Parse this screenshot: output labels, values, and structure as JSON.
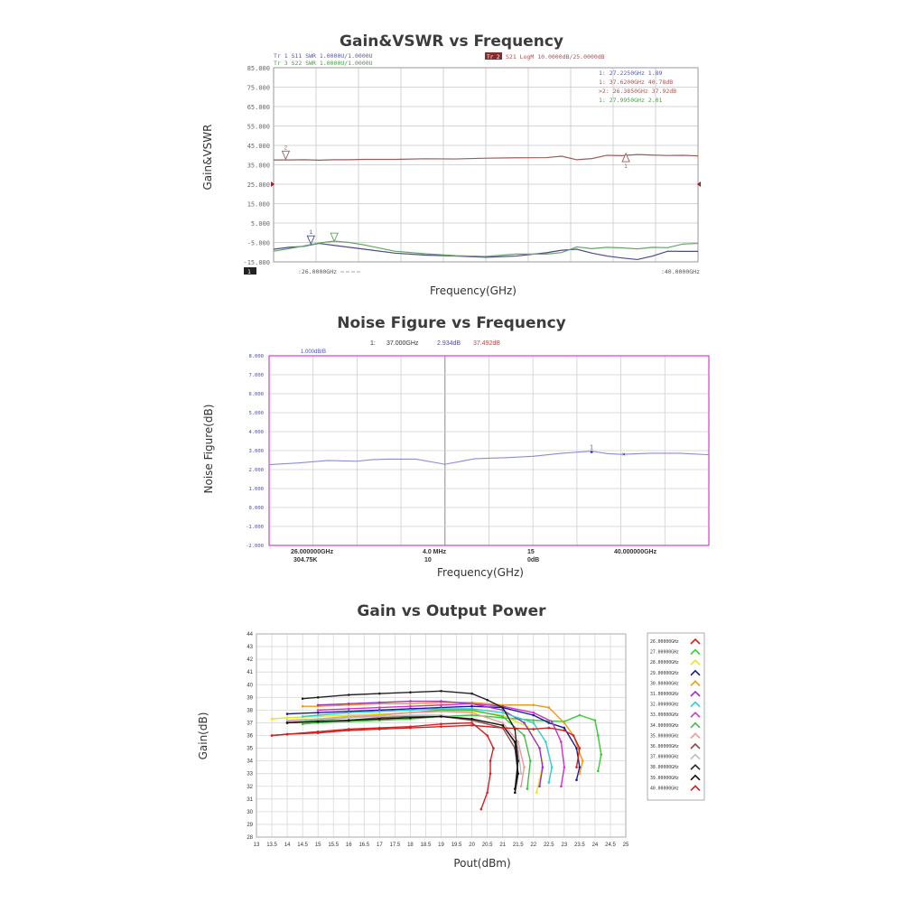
{
  "chart_data": [
    {
      "type": "line",
      "title": "Gain&VSWR vs Frequency",
      "xlabel": "Frequency(GHz)",
      "ylabel": "Gain&VSWR",
      "xlim": [
        26,
        40
      ],
      "ylim": [
        -15,
        85
      ],
      "yticks": [
        "85.000",
        "75.000",
        "65.000",
        "55.000",
        "45.000",
        "35.000",
        "25.000",
        "15.000",
        "5.000",
        "-5.000",
        "-15.000"
      ],
      "trace_header_left": [
        "Tr 1  S11 SWR 1.0000U/1.0000U",
        "Tr 3  S22 SWR 1.0000U/1.0000U"
      ],
      "trace_header_right": "S21 LogM 10.0000dB/25.0000dB",
      "trace_header_right_tag": "Tr 2",
      "marker_table": [
        {
          "text": "1:  27.2250GHz  1.89",
          "color": "#5a5aa8"
        },
        {
          "text": "1:  37.6200GHz  40.78dB",
          "color": "#a05858"
        },
        {
          "text": ">2:  26.3850GHz  37.92dB",
          "color": "#a05858"
        },
        {
          "text": "1:  27.9950GHz  2.01",
          "color": "#4c9a4c"
        }
      ],
      "start_label": ":26.0000GHz",
      "stop_label": ":40.0000GHz",
      "channel_label": "1",
      "series": [
        {
          "color": "#a05a5a",
          "x": [
            26,
            26.5,
            27,
            27.5,
            28,
            28.5,
            29,
            30,
            31,
            32,
            33,
            34,
            35,
            35.5,
            36,
            36.5,
            37,
            37.5,
            38,
            38.5,
            39,
            39.5,
            40
          ],
          "y": [
            37.5,
            37.5,
            37.6,
            37.4,
            37.6,
            37.6,
            37.8,
            37.8,
            38.1,
            38.0,
            38.4,
            38.6,
            38.7,
            39.4,
            37.6,
            38.2,
            39.9,
            39.7,
            40.3,
            40.0,
            39.8,
            39.9,
            39.6
          ]
        },
        {
          "color": "#4a4a8a",
          "x": [
            26,
            26.5,
            27,
            27.5,
            28,
            29,
            30,
            31,
            32,
            33,
            34,
            35,
            35.5,
            36,
            36.5,
            37,
            37.5,
            38,
            38.5,
            39,
            39.5,
            40
          ],
          "y": [
            -8.5,
            -7.5,
            -7,
            -5.5,
            -6.5,
            -8.5,
            -10.5,
            -11.5,
            -12,
            -12.6,
            -12,
            -10.3,
            -9,
            -8.5,
            -10.5,
            -12,
            -13,
            -13.8,
            -12,
            -9.5,
            -9.6,
            -9.6
          ]
        },
        {
          "color": "#62a662",
          "x": [
            26,
            26.5,
            27,
            27.5,
            28,
            28.5,
            29,
            30,
            31,
            32,
            33,
            34,
            35,
            35.5,
            36,
            36.5,
            37,
            37.5,
            38,
            38.5,
            39,
            39.5,
            40
          ],
          "y": [
            -9.5,
            -8.2,
            -6.8,
            -5.3,
            -4.3,
            -5,
            -6.3,
            -9.5,
            -10.8,
            -11.8,
            -12.2,
            -11,
            -11,
            -10.2,
            -7.3,
            -8.2,
            -7.5,
            -7.8,
            -8.3,
            -7.5,
            -7.7,
            -5.8,
            -5.5
          ]
        }
      ],
      "markers": [
        {
          "label": "2",
          "x": 26.4,
          "y": 37.9,
          "color": "#a05a5a",
          "dir": "down"
        },
        {
          "label": "1",
          "x": 37.62,
          "y": 40.8,
          "color": "#a05a5a",
          "dir": "up"
        },
        {
          "label": "1",
          "x": 27.23,
          "y": -5.8,
          "color": "#4a4a8a",
          "dir": "down"
        },
        {
          "label": "",
          "x": 28.0,
          "y": -4.4,
          "color": "#62a662",
          "dir": "down"
        }
      ]
    },
    {
      "type": "line",
      "title": "Noise Figure vs Frequency",
      "xlabel": "Frequency(GHz)",
      "ylabel": "Noise Figure(dB)",
      "xlim": [
        26,
        41
      ],
      "ylim": [
        -2,
        8
      ],
      "yticks": [
        "8.000",
        "7.000",
        "6.000",
        "5.000",
        "4.000",
        "3.000",
        "2.000",
        "1.000",
        "0.000",
        "-1.000",
        "-2.000"
      ],
      "scale_label": "1.000dB/B",
      "marker_readout": {
        "index": "1:",
        "freq": "37.000GHz",
        "nf": "2.934dB",
        "gain": "37.492dB"
      },
      "bottom_labels": {
        "start": "26.000000GHz",
        "start_sub": "304.75K",
        "mid1": "4.0  MHz",
        "mid1_sub": "10",
        "mid2": "15",
        "mid2_sub": "0dB",
        "stop": "40.000000GHz"
      },
      "series": [
        {
          "color": "#8a8ae0",
          "x": [
            26,
            27,
            28,
            29,
            29.5,
            30,
            31,
            32,
            32.5,
            33,
            33.5,
            34,
            35,
            36,
            37,
            37.5,
            38,
            39,
            40,
            41
          ],
          "y": [
            2.26,
            2.35,
            2.48,
            2.44,
            2.52,
            2.55,
            2.55,
            2.28,
            2.42,
            2.57,
            2.6,
            2.62,
            2.7,
            2.86,
            2.97,
            2.85,
            2.8,
            2.86,
            2.86,
            2.78
          ]
        }
      ],
      "markers": [
        {
          "label": "1",
          "x": 37.0,
          "y": 2.93
        },
        {
          "label": "×",
          "x": 38.1,
          "y": 2.78
        }
      ]
    },
    {
      "type": "line",
      "title": "Gain vs Output Power",
      "xlabel": "Pout(dBm)",
      "ylabel": "Gain(dB)",
      "xlim": [
        13,
        25
      ],
      "ylim": [
        28,
        44
      ],
      "grid": true,
      "xticks": [
        "13",
        "13.5",
        "14",
        "14.5",
        "15",
        "15.5",
        "16",
        "16.5",
        "17",
        "17.5",
        "18",
        "18.5",
        "19",
        "19.5",
        "20",
        "20.5",
        "21",
        "21.5",
        "22",
        "22.5",
        "23",
        "23.5",
        "24",
        "24.5",
        "25"
      ],
      "yticks": [
        "28",
        "29",
        "30",
        "31",
        "32",
        "33",
        "34",
        "35",
        "36",
        "37",
        "38",
        "39",
        "40",
        "41",
        "42",
        "43",
        "44"
      ],
      "legend_position": "right",
      "series": [
        {
          "name": "26.00000GHz",
          "color": "#d42020",
          "x": [
            13.5,
            14,
            15,
            16,
            17,
            18,
            19,
            20,
            20.5,
            20.7,
            20.6,
            20.6,
            20.5,
            20.3
          ],
          "y": [
            36.0,
            36.1,
            36.3,
            36.5,
            36.6,
            36.7,
            36.9,
            37.0,
            36.0,
            35.0,
            34.0,
            33.0,
            31.5,
            30.2
          ]
        },
        {
          "name": "27.00000GHz",
          "color": "#33cc33",
          "x": [
            14.5,
            15,
            16,
            17,
            18,
            19,
            20,
            21,
            22,
            23,
            23.5,
            24,
            24.1,
            24.2,
            24.1
          ],
          "y": [
            36.9,
            37.0,
            37.1,
            37.2,
            37.3,
            37.5,
            37.6,
            37.4,
            37.2,
            37.1,
            37.6,
            37.2,
            36.0,
            34.5,
            33.2
          ]
        },
        {
          "name": "28.00000GHz",
          "color": "#e6e61a",
          "x": [
            13.5,
            14,
            15,
            16,
            17,
            18,
            19,
            20,
            21,
            21.8,
            22.2,
            22.3,
            22.2,
            22.1
          ],
          "y": [
            37.3,
            37.4,
            37.5,
            37.6,
            37.7,
            37.8,
            37.9,
            37.9,
            37.6,
            36.7,
            35.0,
            33.8,
            32.5,
            31.5
          ]
        },
        {
          "name": "29.00000GHz",
          "color": "#1a1a99",
          "x": [
            14,
            15,
            16,
            17,
            18,
            19,
            20,
            21,
            22,
            22.5,
            23,
            23.4,
            23.5,
            23.4
          ],
          "y": [
            37.7,
            37.8,
            37.9,
            38.0,
            38.1,
            38.2,
            38.3,
            38.2,
            37.6,
            37.0,
            36.6,
            35.0,
            33.5,
            32.5
          ]
        },
        {
          "name": "30.00000GHz",
          "color": "#f09818",
          "x": [
            14.5,
            15,
            16,
            17,
            18,
            19,
            20,
            21,
            22,
            22.5,
            23,
            23.3,
            23.6,
            23.5
          ],
          "y": [
            38.3,
            38.3,
            38.4,
            38.5,
            38.5,
            38.6,
            38.6,
            38.4,
            38.4,
            38.2,
            37.0,
            36.0,
            34.0,
            33.0
          ]
        },
        {
          "name": "31.00000GHz",
          "color": "#9933cc",
          "x": [
            15,
            16,
            17,
            18,
            19,
            20,
            21,
            21.7,
            22.2,
            22.3,
            22.2
          ],
          "y": [
            38.4,
            38.5,
            38.6,
            38.7,
            38.7,
            38.5,
            38.0,
            37.0,
            35.0,
            33.5,
            32.0
          ]
        },
        {
          "name": "32.00000GHz",
          "color": "#33cccc",
          "x": [
            14.5,
            15,
            16,
            17,
            18,
            19,
            20,
            21,
            22,
            22.4,
            22.6,
            22.5
          ],
          "y": [
            37.5,
            37.6,
            37.8,
            37.9,
            38.0,
            38.1,
            38.1,
            37.8,
            37.0,
            35.5,
            33.5,
            32.3
          ]
        },
        {
          "name": "33.00000GHz",
          "color": "#cc33cc",
          "x": [
            15,
            16,
            17,
            18,
            19,
            20,
            21,
            22,
            22.6,
            22.9,
            23,
            22.9
          ],
          "y": [
            38.0,
            38.1,
            38.2,
            38.3,
            38.4,
            38.5,
            38.3,
            37.8,
            37.1,
            35.5,
            33.5,
            32.0
          ]
        },
        {
          "name": "34.00000GHz",
          "color": "#44bb44",
          "x": [
            14,
            15,
            16,
            17,
            18,
            19,
            20,
            21,
            21.7,
            21.9,
            21.8
          ],
          "y": [
            37.0,
            37.2,
            37.4,
            37.6,
            37.8,
            38.0,
            38.0,
            37.5,
            36.0,
            34.0,
            31.8
          ]
        },
        {
          "name": "35.00000GHz",
          "color": "#ee9999",
          "x": [
            14,
            15,
            16,
            17,
            18,
            19,
            20,
            21,
            21.5,
            21.7,
            21.6
          ],
          "y": [
            37.1,
            37.3,
            37.5,
            37.6,
            37.8,
            37.9,
            37.8,
            37.0,
            35.5,
            33.5,
            32.0
          ]
        },
        {
          "name": "36.00000GHz",
          "color": "#8b4a4a",
          "x": [
            14,
            15,
            16,
            17,
            18,
            19,
            20,
            21,
            21.4,
            21.5,
            21.4
          ],
          "y": [
            37.0,
            37.1,
            37.2,
            37.4,
            37.5,
            37.5,
            37.2,
            36.6,
            35.0,
            33.0,
            31.8
          ]
        },
        {
          "name": "37.00000GHz",
          "color": "#bbbbbb",
          "x": [
            14,
            15,
            16,
            17,
            18,
            19,
            20,
            21,
            21.5,
            21.6
          ],
          "y": [
            37.2,
            37.3,
            37.4,
            37.5,
            37.6,
            37.6,
            37.3,
            36.8,
            35.0,
            33.0
          ]
        },
        {
          "name": "38.00000GHz",
          "color": "#222222",
          "x": [
            14.5,
            15,
            16,
            17,
            18,
            19,
            20,
            20.5,
            21,
            21.4,
            21.5,
            21.4
          ],
          "y": [
            38.9,
            39.0,
            39.2,
            39.3,
            39.4,
            39.5,
            39.3,
            38.8,
            38.2,
            36.5,
            34.0,
            31.8
          ]
        },
        {
          "name": "39.00000GHz",
          "color": "#111111",
          "x": [
            14,
            15,
            16,
            17,
            18,
            19,
            20,
            21,
            21.4,
            21.5,
            21.4
          ],
          "y": [
            37.0,
            37.1,
            37.2,
            37.3,
            37.4,
            37.5,
            37.3,
            36.8,
            35.5,
            33.0,
            31.5
          ]
        },
        {
          "name": "40.00000GHz",
          "color": "#cc2222",
          "x": [
            13.5,
            14,
            15,
            16,
            17,
            18,
            19,
            20,
            21,
            22,
            22.5,
            23,
            23.3,
            23.5,
            23.4
          ],
          "y": [
            36.0,
            36.1,
            36.2,
            36.4,
            36.5,
            36.6,
            36.7,
            36.8,
            36.6,
            36.5,
            36.6,
            36.4,
            36.0,
            35.0,
            33.5
          ]
        }
      ]
    }
  ]
}
